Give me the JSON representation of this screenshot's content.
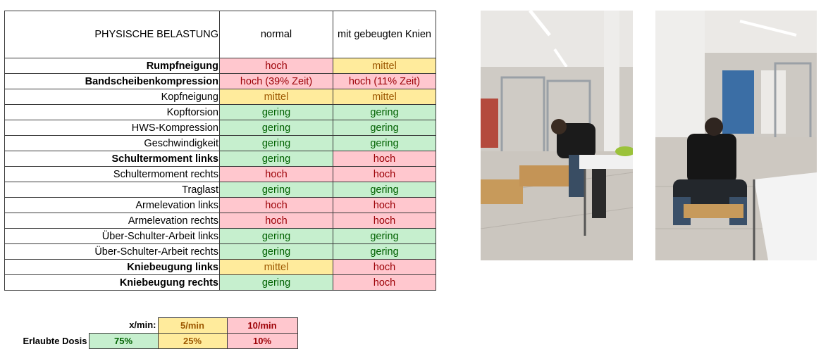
{
  "table": {
    "header": {
      "label": "PHYSISCHE BELASTUNG",
      "col1": "normal",
      "col2": "mit gebeugten Knien"
    },
    "rows": [
      {
        "label": "Rumpfneigung",
        "bold": true,
        "v1": "hoch",
        "l1": "high",
        "v2": "mittel",
        "l2": "mid"
      },
      {
        "label": "Bandscheibenkompression",
        "bold": true,
        "v1": "hoch (39% Zeit)",
        "l1": "high",
        "v2": "hoch (11% Zeit)",
        "l2": "high"
      },
      {
        "label": "Kopfneigung",
        "bold": false,
        "v1": "mittel",
        "l1": "mid",
        "v2": "mittel",
        "l2": "mid"
      },
      {
        "label": "Kopftorsion",
        "bold": false,
        "v1": "gering",
        "l1": "low",
        "v2": "gering",
        "l2": "low"
      },
      {
        "label": "HWS-Kompression",
        "bold": false,
        "v1": "gering",
        "l1": "low",
        "v2": "gering",
        "l2": "low"
      },
      {
        "label": "Geschwindigkeit",
        "bold": false,
        "v1": "gering",
        "l1": "low",
        "v2": "gering",
        "l2": "low"
      },
      {
        "label": "Schultermoment links",
        "bold": true,
        "v1": "gering",
        "l1": "low",
        "v2": "hoch",
        "l2": "high"
      },
      {
        "label": "Schultermoment rechts",
        "bold": false,
        "v1": "hoch",
        "l1": "high",
        "v2": "hoch",
        "l2": "high"
      },
      {
        "label": "Traglast",
        "bold": false,
        "v1": "gering",
        "l1": "low",
        "v2": "gering",
        "l2": "low"
      },
      {
        "label": "Armelevation links",
        "bold": false,
        "v1": "hoch",
        "l1": "high",
        "v2": "hoch",
        "l2": "high"
      },
      {
        "label": "Armelevation rechts",
        "bold": false,
        "v1": "hoch",
        "l1": "high",
        "v2": "hoch",
        "l2": "high"
      },
      {
        "label": "Über-Schulter-Arbeit links",
        "bold": false,
        "v1": "gering",
        "l1": "low",
        "v2": "gering",
        "l2": "low"
      },
      {
        "label": "Über-Schulter-Arbeit rechts",
        "bold": false,
        "v1": "gering",
        "l1": "low",
        "v2": "gering",
        "l2": "low"
      },
      {
        "label": "Kniebeugung links",
        "bold": true,
        "v1": "mittel",
        "l1": "mid",
        "v2": "hoch",
        "l2": "high"
      },
      {
        "label": "Kniebeugung rechts",
        "bold": true,
        "v1": "gering",
        "l1": "low",
        "v2": "hoch",
        "l2": "high"
      }
    ]
  },
  "dose": {
    "rate_label": "x/min:",
    "rate_mid": "5/min",
    "rate_high": "10/min",
    "dose_label": "Erlaubte Dosis",
    "dose_low": "75%",
    "dose_mid": "25%",
    "dose_high": "10%"
  },
  "colors": {
    "low_bg": "#c6efce",
    "low_fg": "#006100",
    "mid_bg": "#ffeb9c",
    "mid_fg": "#9c5700",
    "high_bg": "#ffc7ce",
    "high_fg": "#9c0006"
  },
  "photos": [
    {
      "name": "photo-normal"
    },
    {
      "name": "photo-bent-knees"
    }
  ]
}
